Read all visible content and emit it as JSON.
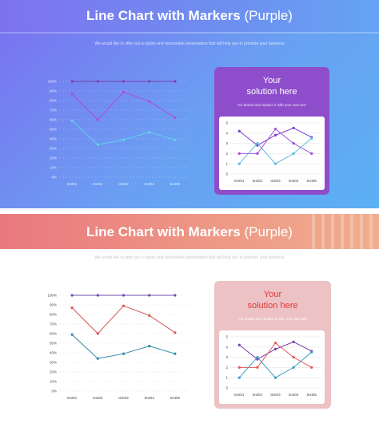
{
  "slide1": {
    "title": "Line Chart with Markers",
    "title_suffix": " (Purple)",
    "subtitle": "We would like to offer you a stylish and reasonable presentation that will help you to promote your business",
    "card_title_line1": "Your",
    "card_title_line2": "solution here",
    "card_sub": "Go ahead and replace it with your own text"
  },
  "slide2": {
    "title": "Line Chart with Markers",
    "title_suffix": " (Purple)",
    "subtitle": "We would like to offer you a stylish and reasonable presentation that will help you to promote your business",
    "card_title_line1": "Your",
    "card_title_line2": "solution here",
    "card_sub": "Go ahead and replace it with your own text"
  },
  "chart_data": [
    {
      "type": "line",
      "categories": [
        "text01",
        "text02",
        "text03",
        "text04",
        "text05"
      ],
      "ylim": [
        0,
        100
      ],
      "yticks": [
        "0%",
        "10%",
        "20%",
        "30%",
        "40%",
        "50%",
        "60%",
        "70%",
        "80%",
        "90%",
        "100%"
      ],
      "series": [
        {
          "values": [
            100,
            100,
            100,
            100,
            100
          ],
          "color": "#7a3fb0"
        },
        {
          "values": [
            87,
            60,
            89,
            79,
            62
          ],
          "color": "#b34ad4"
        },
        {
          "values": [
            59,
            34,
            39,
            47,
            39
          ],
          "color": "#5fd6e8"
        }
      ],
      "grid": true
    },
    {
      "type": "line",
      "categories": [
        "text01",
        "text02",
        "text03",
        "text04",
        "text05"
      ],
      "ylim": [
        0,
        5
      ],
      "yticks": [
        "0",
        "1",
        "2",
        "3",
        "4",
        "5"
      ],
      "series": [
        {
          "values": [
            4.2,
            2.8,
            3.8,
            4.5,
            3.6
          ],
          "color": "#7b3cd6"
        },
        {
          "values": [
            2.0,
            2.0,
            4.4,
            3.0,
            2.0
          ],
          "color": "#a24fd6"
        },
        {
          "values": [
            1.0,
            3.0,
            1.0,
            2.0,
            3.5
          ],
          "color": "#5bbbe0"
        }
      ],
      "grid": true
    },
    {
      "type": "line",
      "categories": [
        "text01",
        "text02",
        "text03",
        "text04",
        "text05"
      ],
      "ylim": [
        0,
        100
      ],
      "yticks": [
        "0%",
        "10%",
        "20%",
        "30%",
        "40%",
        "50%",
        "60%",
        "70%",
        "80%",
        "90%",
        "100%"
      ],
      "series": [
        {
          "values": [
            100,
            100,
            100,
            100,
            100
          ],
          "color": "#6b4caa"
        },
        {
          "values": [
            87,
            60,
            89,
            79,
            61
          ],
          "color": "#d4574f"
        },
        {
          "values": [
            59,
            34,
            39,
            47,
            39
          ],
          "color": "#2e86a6"
        }
      ],
      "grid": true
    },
    {
      "type": "line",
      "categories": [
        "text01",
        "text02",
        "text03",
        "text04",
        "text05"
      ],
      "ylim": [
        0,
        5
      ],
      "yticks": [
        "0",
        "1",
        "2",
        "3",
        "4",
        "5"
      ],
      "series": [
        {
          "values": [
            4.2,
            2.8,
            3.8,
            4.5,
            3.6
          ],
          "color": "#7b3cb0"
        },
        {
          "values": [
            2.0,
            2.0,
            4.4,
            3.0,
            2.0
          ],
          "color": "#e25a55"
        },
        {
          "values": [
            1.0,
            3.0,
            1.0,
            2.0,
            3.5
          ],
          "color": "#3b9cc0"
        }
      ],
      "grid": true
    }
  ]
}
